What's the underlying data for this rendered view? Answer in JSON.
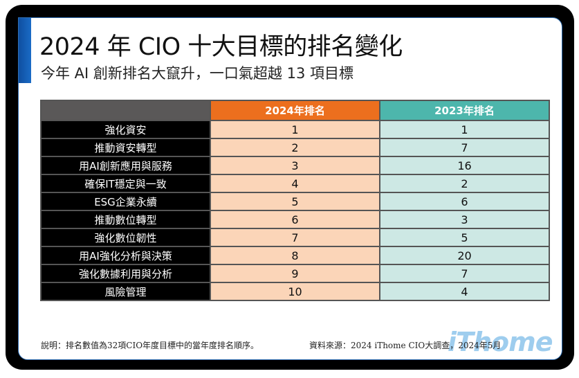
{
  "header": {
    "title": "2024 年 CIO 十大目標的排名變化",
    "subtitle": "今年 AI 創新排名大竄升，一口氣超越 13 項目標"
  },
  "table": {
    "columns": [
      "",
      "2024年排名",
      "2023年排名"
    ],
    "rows": [
      {
        "name": "強化資安",
        "rank_2024": "1",
        "rank_2023": "1"
      },
      {
        "name": "推動資安轉型",
        "rank_2024": "2",
        "rank_2023": "7"
      },
      {
        "name": "用AI創新應用與服務",
        "rank_2024": "3",
        "rank_2023": "16"
      },
      {
        "name": "確保IT穩定與一致",
        "rank_2024": "4",
        "rank_2023": "2"
      },
      {
        "name": "ESG企業永續",
        "rank_2024": "5",
        "rank_2023": "6"
      },
      {
        "name": "推動數位轉型",
        "rank_2024": "6",
        "rank_2023": "3"
      },
      {
        "name": "強化數位韌性",
        "rank_2024": "7",
        "rank_2023": "5"
      },
      {
        "name": "用AI強化分析與決策",
        "rank_2024": "8",
        "rank_2023": "20"
      },
      {
        "name": "強化數據利用與分析",
        "rank_2024": "9",
        "rank_2023": "7"
      },
      {
        "name": "風險管理",
        "rank_2024": "10",
        "rank_2023": "4"
      }
    ]
  },
  "footer": {
    "note": "說明：排名數值為32項CIO年度目標中的當年度排名順序。",
    "source": "資料來源：2024 iThome CIO大調查，2024年5月",
    "logo": "iThome"
  },
  "colors": {
    "accent_blue": "#1a6bc6",
    "header_2024": "#ec6f1e",
    "header_2023": "#4db6ac",
    "cell_2024": "#fbd5b8",
    "cell_2023": "#cde8e4"
  }
}
